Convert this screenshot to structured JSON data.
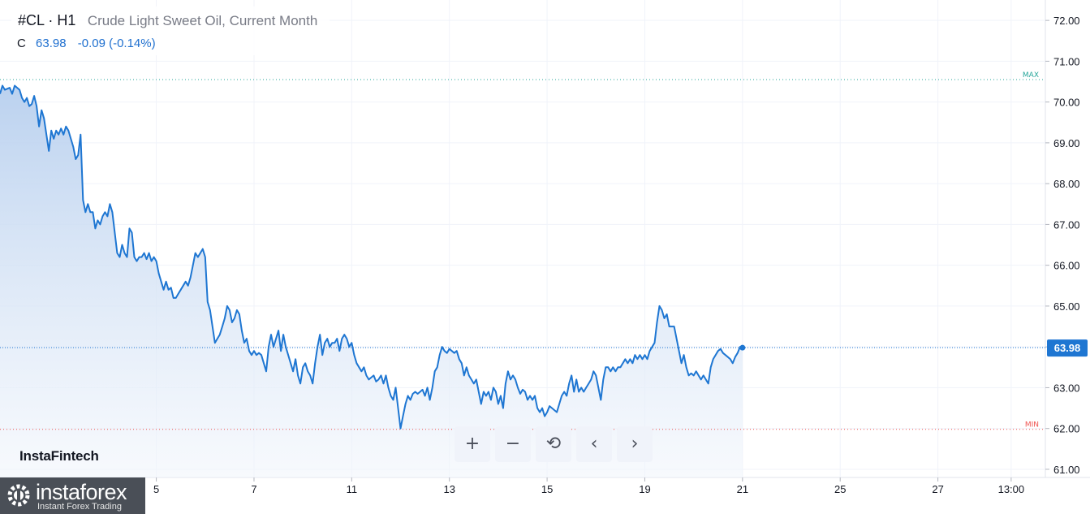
{
  "legend": {
    "symbol": "#CL · H1",
    "title": "Crude Light Sweet Oil, Current Month",
    "c_label": "C",
    "last_value": "63.98",
    "change": "-0.09 (-0.14%)"
  },
  "brand": "InstaFintech",
  "toolbar": {
    "zoom_in": "+",
    "zoom_out": "−",
    "reset": "⟲",
    "prev": "‹",
    "next": "›"
  },
  "watermark": {
    "name": "instaforex",
    "tagline": "Instant Forex Trading"
  },
  "colors": {
    "line": "#1e76d2",
    "area_top": "#b7cfee",
    "area_bottom": "#f2f6fc",
    "max_line": "#26a69a",
    "min_line": "#ef5350",
    "last_price_badge": "#1e76d2"
  },
  "chart_data": {
    "type": "area",
    "y_range": [
      60.8,
      72.5
    ],
    "y_ticks": [
      "72.00",
      "71.00",
      "70.00",
      "69.00",
      "68.00",
      "67.00",
      "66.00",
      "65.00",
      "64.00",
      "63.00",
      "62.00",
      "61.00"
    ],
    "x_ticks": [
      {
        "label": "5",
        "x": 20
      },
      {
        "label": "7",
        "x": 40
      },
      {
        "label": "11",
        "x": 60
      },
      {
        "label": "13",
        "x": 80
      },
      {
        "label": "15",
        "x": 100
      },
      {
        "label": "19",
        "x": 120
      },
      {
        "label": "21",
        "x": 140
      },
      {
        "label": "25",
        "x": 160
      },
      {
        "label": "27",
        "x": 180
      },
      {
        "label": "13:00",
        "x": 195
      }
    ],
    "x_range": [
      -12,
      202
    ],
    "max_level": 70.55,
    "max_label": "MAX",
    "min_level": 61.98,
    "min_label": "MIN",
    "last_price": 63.98,
    "last_price_label": "63.98",
    "series": [
      {
        "values": [
          [
            -12,
            70.2
          ],
          [
            -11.5,
            70.4
          ],
          [
            -11,
            70.3
          ],
          [
            -10,
            70.35
          ],
          [
            -9.5,
            70.2
          ],
          [
            -9,
            70.4
          ],
          [
            -8,
            70.3
          ],
          [
            -7.5,
            70.1
          ],
          [
            -7,
            70.0
          ],
          [
            -6.5,
            70.1
          ],
          [
            -6,
            69.9
          ],
          [
            -5.5,
            69.95
          ],
          [
            -5,
            70.15
          ],
          [
            -4.5,
            69.9
          ],
          [
            -4,
            69.4
          ],
          [
            -3.5,
            69.8
          ],
          [
            -3,
            69.6
          ],
          [
            -2.5,
            69.2
          ],
          [
            -2,
            68.8
          ],
          [
            -1.5,
            69.3
          ],
          [
            -1,
            69.1
          ],
          [
            -0.5,
            69.3
          ],
          [
            0,
            69.2
          ],
          [
            0.5,
            69.35
          ],
          [
            1,
            69.2
          ],
          [
            1.5,
            69.4
          ],
          [
            2,
            69.3
          ],
          [
            2.5,
            69.1
          ],
          [
            3,
            68.9
          ],
          [
            3.5,
            68.6
          ],
          [
            4,
            68.7
          ],
          [
            4.5,
            69.2
          ],
          [
            5,
            67.6
          ],
          [
            5.5,
            67.3
          ],
          [
            6,
            67.5
          ],
          [
            6.5,
            67.3
          ],
          [
            7,
            67.3
          ],
          [
            7.5,
            66.9
          ],
          [
            8,
            67.1
          ],
          [
            8.5,
            67.0
          ],
          [
            9,
            67.2
          ],
          [
            9.5,
            67.3
          ],
          [
            10,
            67.2
          ],
          [
            10.5,
            67.5
          ],
          [
            11,
            67.3
          ],
          [
            11.5,
            66.8
          ],
          [
            12,
            66.3
          ],
          [
            12.5,
            66.2
          ],
          [
            13,
            66.5
          ],
          [
            13.5,
            66.3
          ],
          [
            14,
            66.2
          ],
          [
            14.5,
            66.9
          ],
          [
            15,
            66.8
          ],
          [
            15.5,
            66.2
          ],
          [
            16,
            66.1
          ],
          [
            16.5,
            66.2
          ],
          [
            17,
            66.2
          ],
          [
            17.5,
            66.3
          ],
          [
            18,
            66.15
          ],
          [
            18.5,
            66.3
          ],
          [
            19,
            66.1
          ],
          [
            19.5,
            66.2
          ],
          [
            20,
            66.1
          ],
          [
            20.5,
            65.8
          ],
          [
            21,
            65.6
          ],
          [
            21.5,
            65.4
          ],
          [
            22,
            65.6
          ],
          [
            22.5,
            65.4
          ],
          [
            23,
            65.45
          ],
          [
            23.5,
            65.2
          ],
          [
            24,
            65.2
          ],
          [
            24.5,
            65.3
          ],
          [
            25,
            65.4
          ],
          [
            25.5,
            65.5
          ],
          [
            26,
            65.6
          ],
          [
            26.5,
            65.5
          ],
          [
            27,
            65.7
          ],
          [
            27.5,
            66.0
          ],
          [
            28,
            66.3
          ],
          [
            28.5,
            66.2
          ],
          [
            29,
            66.3
          ],
          [
            29.5,
            66.4
          ],
          [
            30,
            66.2
          ],
          [
            30.5,
            65.1
          ],
          [
            31,
            64.9
          ],
          [
            31.5,
            64.5
          ],
          [
            32,
            64.1
          ],
          [
            32.5,
            64.2
          ],
          [
            33,
            64.3
          ],
          [
            33.5,
            64.5
          ],
          [
            34,
            64.7
          ],
          [
            34.5,
            65.0
          ],
          [
            35,
            64.9
          ],
          [
            35.5,
            64.6
          ],
          [
            36,
            64.7
          ],
          [
            36.5,
            64.9
          ],
          [
            37,
            64.8
          ],
          [
            37.5,
            64.4
          ],
          [
            38,
            64.1
          ],
          [
            38.5,
            64.2
          ],
          [
            39,
            63.9
          ],
          [
            39.5,
            63.8
          ],
          [
            40,
            63.9
          ],
          [
            40.5,
            63.8
          ],
          [
            41,
            63.85
          ],
          [
            41.5,
            63.8
          ],
          [
            42,
            63.6
          ],
          [
            42.5,
            63.4
          ],
          [
            43,
            64.0
          ],
          [
            43.5,
            64.3
          ],
          [
            44,
            64.0
          ],
          [
            44.5,
            64.2
          ],
          [
            45,
            64.4
          ],
          [
            45.5,
            63.9
          ],
          [
            46,
            64.3
          ],
          [
            46.5,
            64.0
          ],
          [
            47,
            63.8
          ],
          [
            47.5,
            63.6
          ],
          [
            48,
            63.4
          ],
          [
            48.5,
            63.7
          ],
          [
            49,
            63.3
          ],
          [
            49.5,
            63.1
          ],
          [
            50,
            63.5
          ],
          [
            50.5,
            63.6
          ],
          [
            51,
            63.4
          ],
          [
            51.5,
            63.3
          ],
          [
            52,
            63.1
          ],
          [
            52.5,
            63.6
          ],
          [
            53,
            64.0
          ],
          [
            53.5,
            64.3
          ],
          [
            54,
            63.8
          ],
          [
            54.5,
            64.1
          ],
          [
            55,
            64.2
          ],
          [
            55.5,
            64.0
          ],
          [
            56,
            64.1
          ],
          [
            56.5,
            64.1
          ],
          [
            57,
            64.2
          ],
          [
            57.5,
            63.9
          ],
          [
            58,
            64.2
          ],
          [
            58.5,
            64.3
          ],
          [
            59,
            64.2
          ],
          [
            59.5,
            64.0
          ],
          [
            60,
            64.1
          ],
          [
            60.5,
            63.8
          ],
          [
            61,
            63.6
          ],
          [
            61.5,
            63.5
          ],
          [
            62,
            63.4
          ],
          [
            62.5,
            63.5
          ],
          [
            63,
            63.3
          ],
          [
            63.5,
            63.2
          ],
          [
            64,
            63.25
          ],
          [
            64.5,
            63.3
          ],
          [
            65,
            63.15
          ],
          [
            65.5,
            63.2
          ],
          [
            66,
            63.3
          ],
          [
            66.5,
            63.1
          ],
          [
            67,
            63.3
          ],
          [
            67.5,
            63.0
          ],
          [
            68,
            62.8
          ],
          [
            68.5,
            62.7
          ],
          [
            69,
            63.0
          ],
          [
            69.5,
            62.5
          ],
          [
            70,
            62.0
          ],
          [
            70.5,
            62.3
          ],
          [
            71,
            62.6
          ],
          [
            71.5,
            62.8
          ],
          [
            72,
            62.7
          ],
          [
            72.5,
            62.85
          ],
          [
            73,
            62.9
          ],
          [
            73.5,
            62.85
          ],
          [
            74,
            62.9
          ],
          [
            74.5,
            62.95
          ],
          [
            75,
            62.8
          ],
          [
            75.5,
            63.0
          ],
          [
            76,
            62.7
          ],
          [
            76.5,
            63.0
          ],
          [
            77,
            63.4
          ],
          [
            77.5,
            63.5
          ],
          [
            78,
            63.8
          ],
          [
            78.5,
            64.0
          ],
          [
            79,
            63.9
          ],
          [
            79.5,
            63.85
          ],
          [
            80,
            63.95
          ],
          [
            80.5,
            63.9
          ],
          [
            81,
            63.85
          ],
          [
            81.5,
            63.9
          ],
          [
            82,
            63.7
          ],
          [
            82.5,
            63.6
          ],
          [
            83,
            63.3
          ],
          [
            83.5,
            63.5
          ],
          [
            84,
            63.3
          ],
          [
            84.5,
            63.2
          ],
          [
            85,
            63.1
          ],
          [
            85.5,
            63.2
          ],
          [
            86,
            62.9
          ],
          [
            86.5,
            62.6
          ],
          [
            87,
            62.9
          ],
          [
            87.5,
            62.8
          ],
          [
            88,
            62.9
          ],
          [
            88.5,
            62.7
          ],
          [
            89,
            63.0
          ],
          [
            89.5,
            62.9
          ],
          [
            90,
            62.6
          ],
          [
            90.5,
            62.8
          ],
          [
            91,
            62.5
          ],
          [
            91.5,
            63.1
          ],
          [
            92,
            63.4
          ],
          [
            92.5,
            63.2
          ],
          [
            93,
            63.3
          ],
          [
            93.5,
            63.2
          ],
          [
            94,
            63.0
          ],
          [
            94.5,
            62.85
          ],
          [
            95,
            62.95
          ],
          [
            95.5,
            62.9
          ],
          [
            96,
            62.7
          ],
          [
            96.5,
            62.8
          ],
          [
            97,
            62.7
          ],
          [
            97.5,
            62.8
          ],
          [
            98,
            62.5
          ],
          [
            98.5,
            62.4
          ],
          [
            99,
            62.5
          ],
          [
            99.5,
            62.3
          ],
          [
            100,
            62.4
          ],
          [
            100.5,
            62.55
          ],
          [
            101,
            62.5
          ],
          [
            101.5,
            62.45
          ],
          [
            102,
            62.4
          ],
          [
            102.5,
            62.6
          ],
          [
            103,
            62.8
          ],
          [
            103.5,
            62.9
          ],
          [
            104,
            62.8
          ],
          [
            104.5,
            63.1
          ],
          [
            105,
            63.3
          ],
          [
            105.5,
            62.9
          ],
          [
            106,
            63.2
          ],
          [
            106.5,
            62.9
          ],
          [
            107,
            63.0
          ],
          [
            107.5,
            62.9
          ],
          [
            108,
            63.0
          ],
          [
            108.5,
            63.1
          ],
          [
            109,
            63.2
          ],
          [
            109.5,
            63.4
          ],
          [
            110,
            63.3
          ],
          [
            110.5,
            63.0
          ],
          [
            111,
            62.7
          ],
          [
            111.5,
            63.2
          ],
          [
            112,
            63.5
          ],
          [
            112.5,
            63.5
          ],
          [
            113,
            63.4
          ],
          [
            113.5,
            63.5
          ],
          [
            114,
            63.4
          ],
          [
            114.5,
            63.5
          ],
          [
            115,
            63.5
          ],
          [
            115.5,
            63.6
          ],
          [
            116,
            63.7
          ],
          [
            116.5,
            63.6
          ],
          [
            117,
            63.7
          ],
          [
            117.5,
            63.6
          ],
          [
            118,
            63.8
          ],
          [
            118.5,
            63.7
          ],
          [
            119,
            63.8
          ],
          [
            119.5,
            63.7
          ],
          [
            120,
            63.8
          ],
          [
            120.5,
            63.7
          ],
          [
            121,
            63.9
          ],
          [
            121.5,
            64.0
          ],
          [
            122,
            64.1
          ],
          [
            122.5,
            64.6
          ],
          [
            123,
            65.0
          ],
          [
            123.5,
            64.9
          ],
          [
            124,
            64.7
          ],
          [
            124.5,
            64.8
          ],
          [
            125,
            64.5
          ],
          [
            125.5,
            64.5
          ],
          [
            126,
            64.5
          ],
          [
            126.5,
            64.2
          ],
          [
            127,
            63.9
          ],
          [
            127.5,
            63.6
          ],
          [
            128,
            63.8
          ],
          [
            128.5,
            63.5
          ],
          [
            129,
            63.3
          ],
          [
            129.5,
            63.35
          ],
          [
            130,
            63.3
          ],
          [
            130.5,
            63.4
          ],
          [
            131,
            63.3
          ],
          [
            131.5,
            63.2
          ],
          [
            132,
            63.3
          ],
          [
            132.5,
            63.2
          ],
          [
            133,
            63.1
          ],
          [
            133.5,
            63.5
          ],
          [
            134,
            63.7
          ],
          [
            134.5,
            63.8
          ],
          [
            135,
            63.9
          ],
          [
            135.5,
            63.95
          ],
          [
            136,
            63.85
          ],
          [
            136.5,
            63.8
          ],
          [
            137,
            63.75
          ],
          [
            137.5,
            63.7
          ],
          [
            138,
            63.6
          ],
          [
            138.5,
            63.75
          ],
          [
            139,
            63.85
          ],
          [
            139.5,
            64.0
          ],
          [
            140,
            63.98
          ]
        ]
      }
    ]
  }
}
